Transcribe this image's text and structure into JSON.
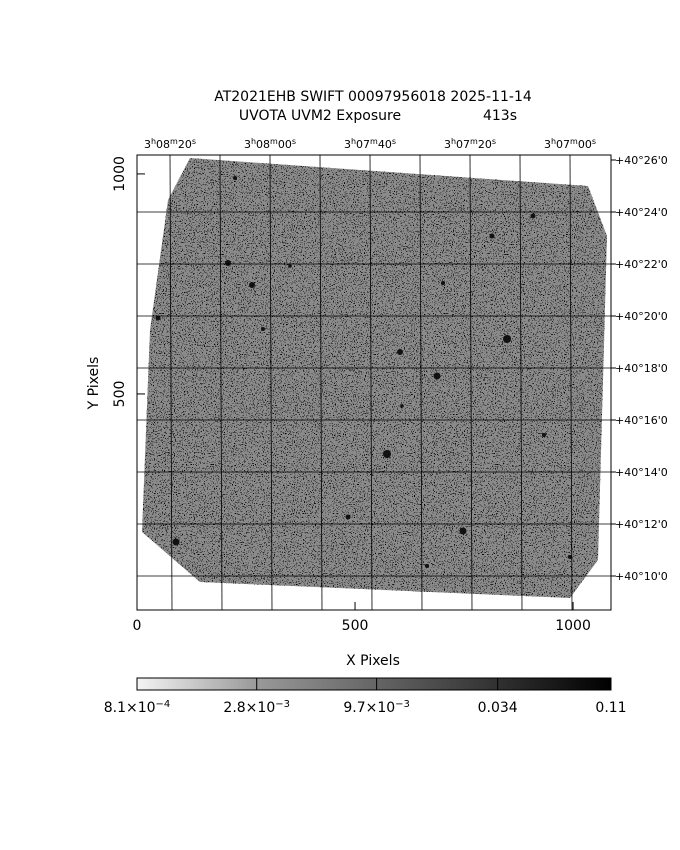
{
  "chart_data": {
    "type": "image",
    "title": "AT2021EHB SWIFT 00097956018 2025-11-14",
    "subtitle": "UVOTA UVM2 Exposure",
    "exposure": "413s",
    "x_label": "X Pixels",
    "y_label": "Y Pixels",
    "xlim": [
      0,
      1087
    ],
    "ylim": [
      9,
      1043
    ],
    "xticks": [
      0,
      500,
      1000
    ],
    "yticks": [
      500,
      1000
    ],
    "ra_labels": [
      [
        "3",
        "h",
        "08",
        "m",
        "20",
        "s"
      ],
      [
        "3",
        "h",
        "08",
        "m",
        "00",
        "s"
      ],
      [
        "3",
        "h",
        "07",
        "m",
        "40",
        "s"
      ],
      [
        "3",
        "h",
        "07",
        "m",
        "20",
        "s"
      ],
      [
        "3",
        "h",
        "07",
        "m",
        "00",
        "s"
      ]
    ],
    "dec_labels": [
      "+40°26'0",
      "+40°24'0",
      "+40°22'0",
      "+40°20'0",
      "+40°18'0",
      "+40°16'0",
      "+40°14'0",
      "+40°12'0",
      "+40°10'0"
    ],
    "colorbar": {
      "log": true,
      "lim": [
        0.00081,
        0.11
      ],
      "ticks": [
        {
          "value": 0.00081,
          "label": [
            "8.1×10",
            "−4"
          ]
        },
        {
          "value": 0.0028,
          "label": [
            "2.8×10",
            "−3"
          ]
        },
        {
          "value": 0.0097,
          "label": [
            "9.7×10",
            "−3"
          ]
        },
        {
          "value": 0.034,
          "label": [
            "0.034"
          ]
        },
        {
          "value": 0.11,
          "label": [
            "0.11"
          ]
        }
      ]
    }
  }
}
